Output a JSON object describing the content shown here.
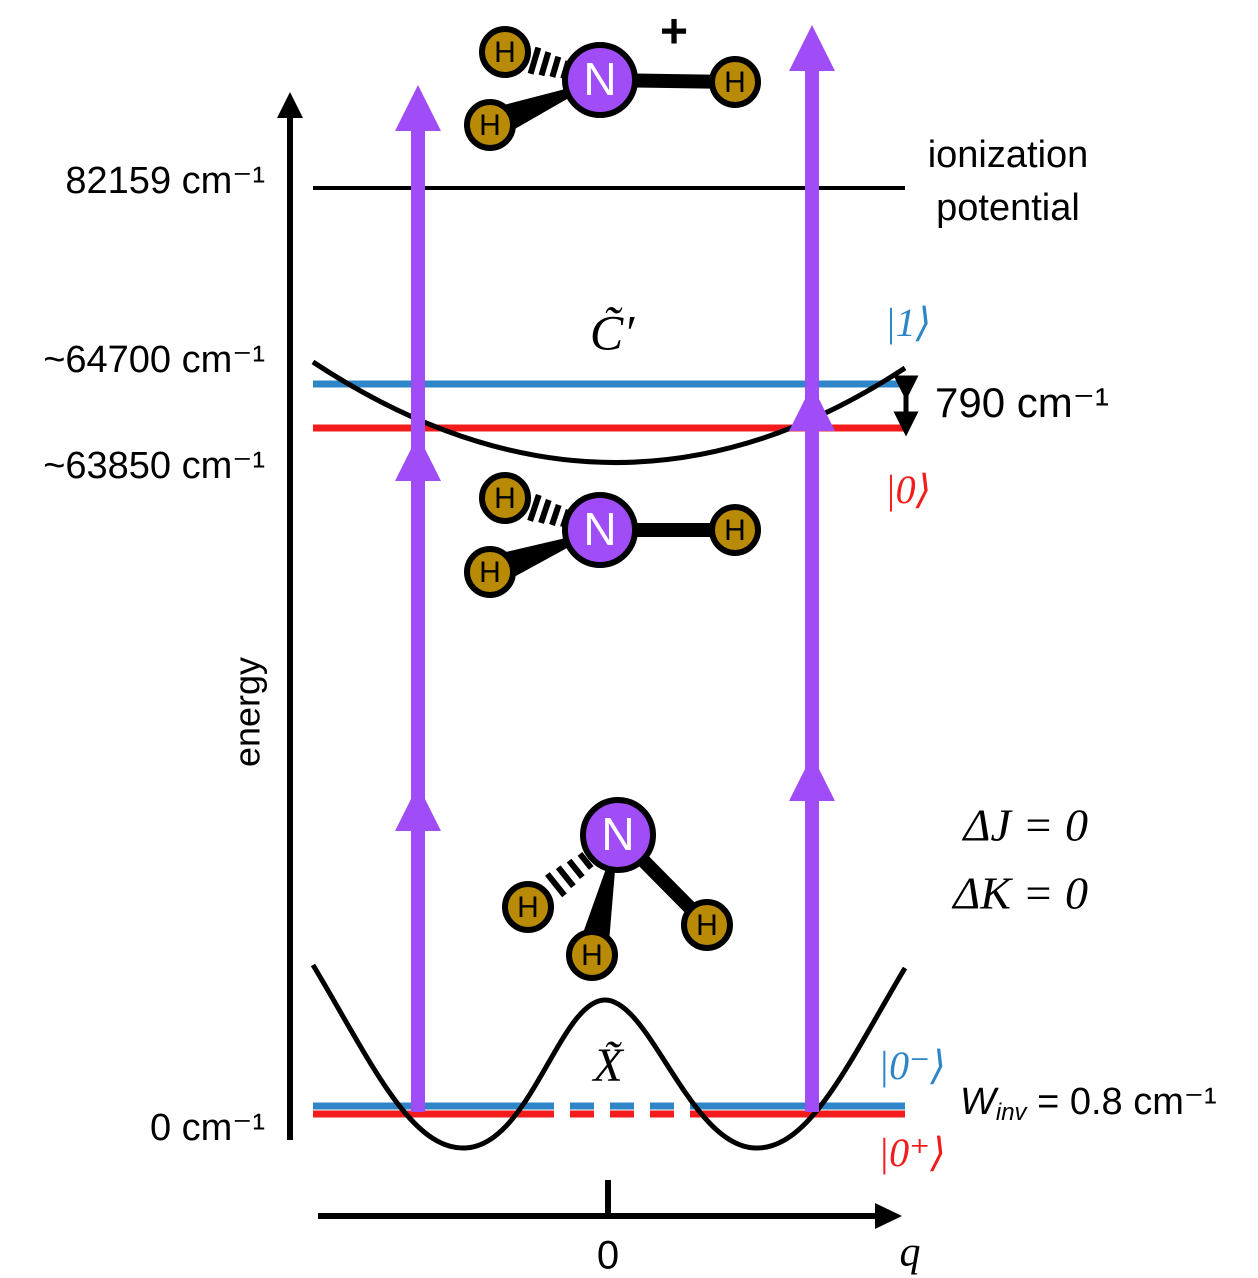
{
  "axes": {
    "energy": "energy",
    "q": "q",
    "q_zero": "0"
  },
  "levels": [
    "82159 cm⁻¹",
    "~64700 cm⁻¹",
    "~63850 cm⁻¹",
    "0 cm⁻¹"
  ],
  "ionization": [
    "ionization",
    "potential"
  ],
  "excited": {
    "label": "C̃′",
    "upper": "|1⟩",
    "lower": "|0⟩",
    "splitting": "790 cm⁻¹"
  },
  "ground": {
    "label": "X̃",
    "upper": "|0⁻⟩",
    "lower": "|0⁺⟩",
    "w": "W",
    "w_sub": "inv",
    "w_value": " = 0.8 cm⁻¹"
  },
  "selection": [
    "ΔJ = 0",
    "ΔK = 0"
  ],
  "molecules": [
    {
      "atoms": [
        "N",
        "H",
        "H",
        "H"
      ],
      "charge": "+"
    },
    {
      "atoms": [
        "N",
        "H",
        "H",
        "H"
      ]
    },
    {
      "atoms": [
        "N",
        "H",
        "H",
        "H"
      ]
    }
  ]
}
